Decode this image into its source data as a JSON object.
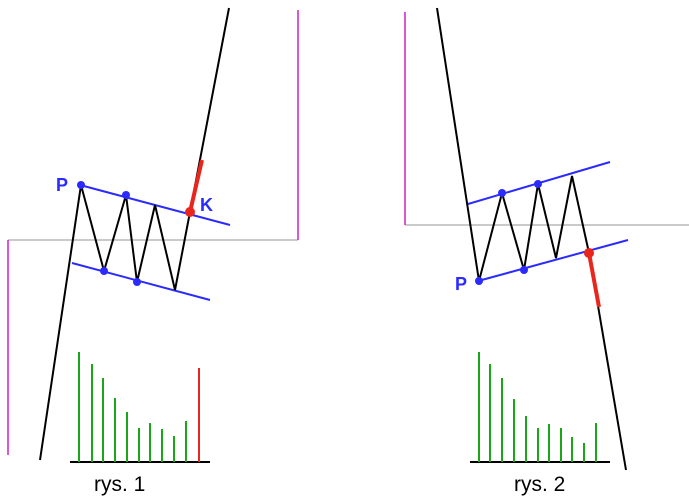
{
  "figure_1": {
    "caption": "rys. 1",
    "point_p": "P",
    "point_k": "K"
  },
  "figure_2": {
    "caption": "rys. 2",
    "point_p": "P"
  },
  "colors": {
    "channel": "#2b2bff",
    "breakout": "#e8261e",
    "volume": "#1aa51a",
    "volume_spike": "#e8261e",
    "level_line": "#cc22cc",
    "support_line": "#aaaaaa",
    "price": "#000000"
  }
}
